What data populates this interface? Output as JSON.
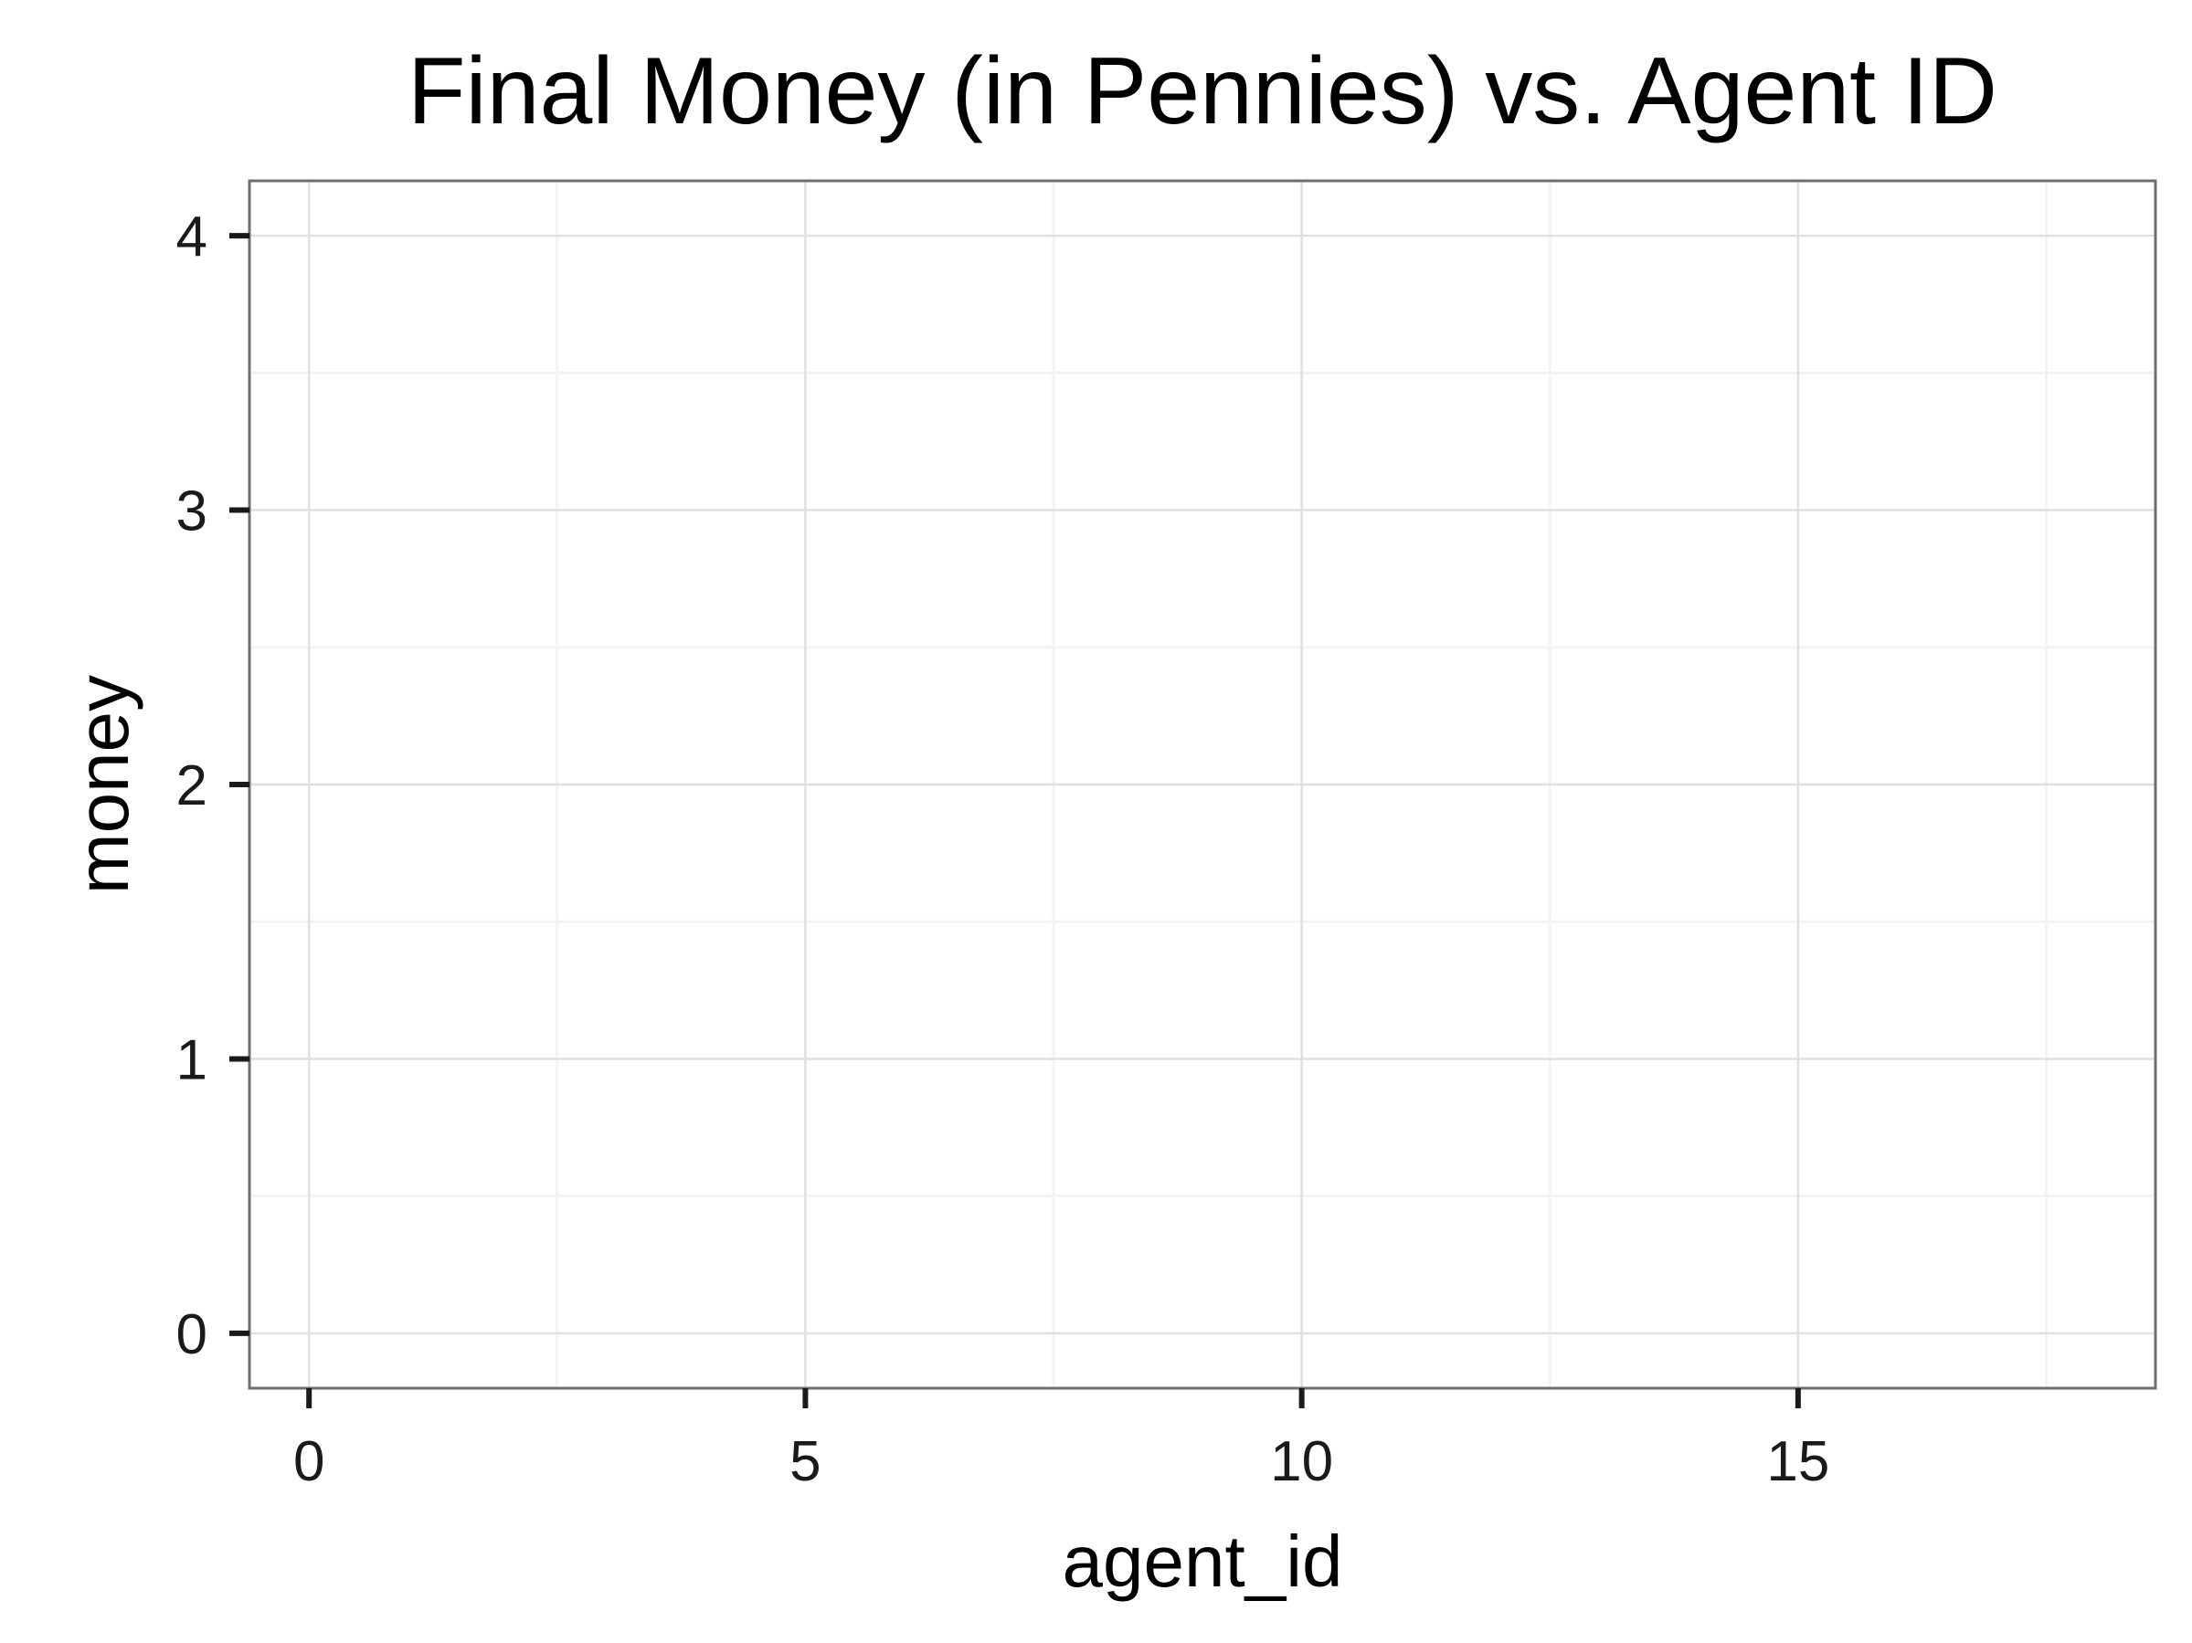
{
  "chart_data": {
    "type": "scatter",
    "title": "Final Money (in Pennies) vs. Agent ID",
    "xlabel": "agent_id",
    "ylabel": "money",
    "xlim": [
      -0.6,
      18.6
    ],
    "ylim": [
      -0.2,
      4.2
    ],
    "x_ticks": [
      0,
      5,
      10,
      15
    ],
    "y_ticks": [
      0,
      1,
      2,
      3,
      4
    ],
    "x_tick_labels": [
      "0",
      "5",
      "10",
      "15"
    ],
    "y_tick_labels": [
      "0",
      "1",
      "2",
      "3",
      "4"
    ],
    "x_minor_gridlines": [
      2.5,
      7.5,
      12.5,
      17.5
    ],
    "y_minor_gridlines": [
      0.5,
      1.5,
      2.5,
      3.5
    ],
    "grid": true,
    "series": [
      {
        "x": [],
        "y": []
      }
    ],
    "colors": {
      "panel_border": "#6e6e6e",
      "major_grid": "#e0e0e0",
      "minor_grid": "#f3f3f3",
      "tick_mark": "#1a1a1a"
    }
  }
}
